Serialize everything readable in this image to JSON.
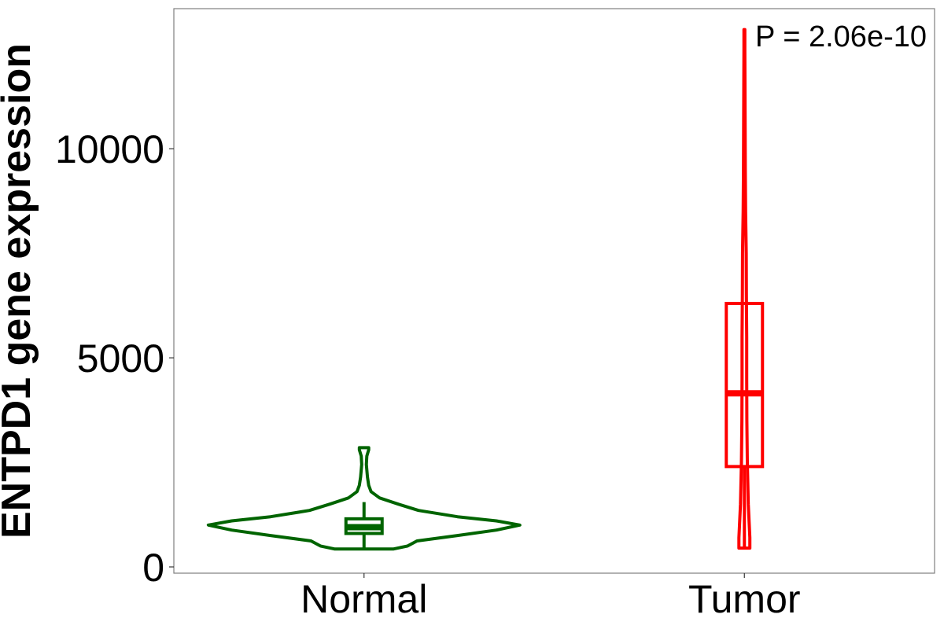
{
  "chart_data": {
    "type": "violin",
    "ylabel": "ENTPD1 gene expression",
    "xlabel": "",
    "ylim": [
      -150,
      13350
    ],
    "yticks": [
      0,
      5000,
      10000
    ],
    "ytick_labels": [
      "0",
      "5000",
      "10000"
    ],
    "categories": [
      "Normal",
      "Tumor"
    ],
    "grid": false,
    "legend": "none",
    "annotation": "P = 2.06e-10",
    "series": [
      {
        "name": "Normal",
        "color": "#006400",
        "min": 430,
        "q1": 800,
        "median": 950,
        "q3": 1150,
        "max": 2850,
        "whisker_low": 430,
        "whisker_high": 1550,
        "density": [
          [
            430,
            0.19
          ],
          [
            500,
            0.28
          ],
          [
            620,
            0.34
          ],
          [
            750,
            0.6
          ],
          [
            880,
            0.85
          ],
          [
            1000,
            1.0
          ],
          [
            1100,
            0.85
          ],
          [
            1200,
            0.6
          ],
          [
            1350,
            0.35
          ],
          [
            1500,
            0.22
          ],
          [
            1650,
            0.1
          ],
          [
            1800,
            0.045
          ],
          [
            1950,
            0.03
          ],
          [
            2150,
            0.022
          ],
          [
            2450,
            0.015
          ],
          [
            2650,
            0.018
          ],
          [
            2800,
            0.03
          ],
          [
            2850,
            0.03
          ]
        ]
      },
      {
        "name": "Tumor",
        "color": "#ff0000",
        "min": 450,
        "q1": 2400,
        "median": 4150,
        "q3": 6300,
        "max": 12850,
        "whisker_low": 450,
        "whisker_high": 6300,
        "density": [
          [
            450,
            0.035
          ],
          [
            700,
            0.035
          ],
          [
            1500,
            0.025
          ],
          [
            2500,
            0.019
          ],
          [
            3500,
            0.016
          ],
          [
            4500,
            0.015
          ],
          [
            5500,
            0.015
          ],
          [
            6500,
            0.013
          ],
          [
            7500,
            0.012
          ],
          [
            8500,
            0.008
          ],
          [
            9500,
            0.006
          ],
          [
            10500,
            0.005
          ],
          [
            11500,
            0.004
          ],
          [
            12400,
            0.003
          ],
          [
            12850,
            0.003
          ]
        ]
      }
    ]
  }
}
